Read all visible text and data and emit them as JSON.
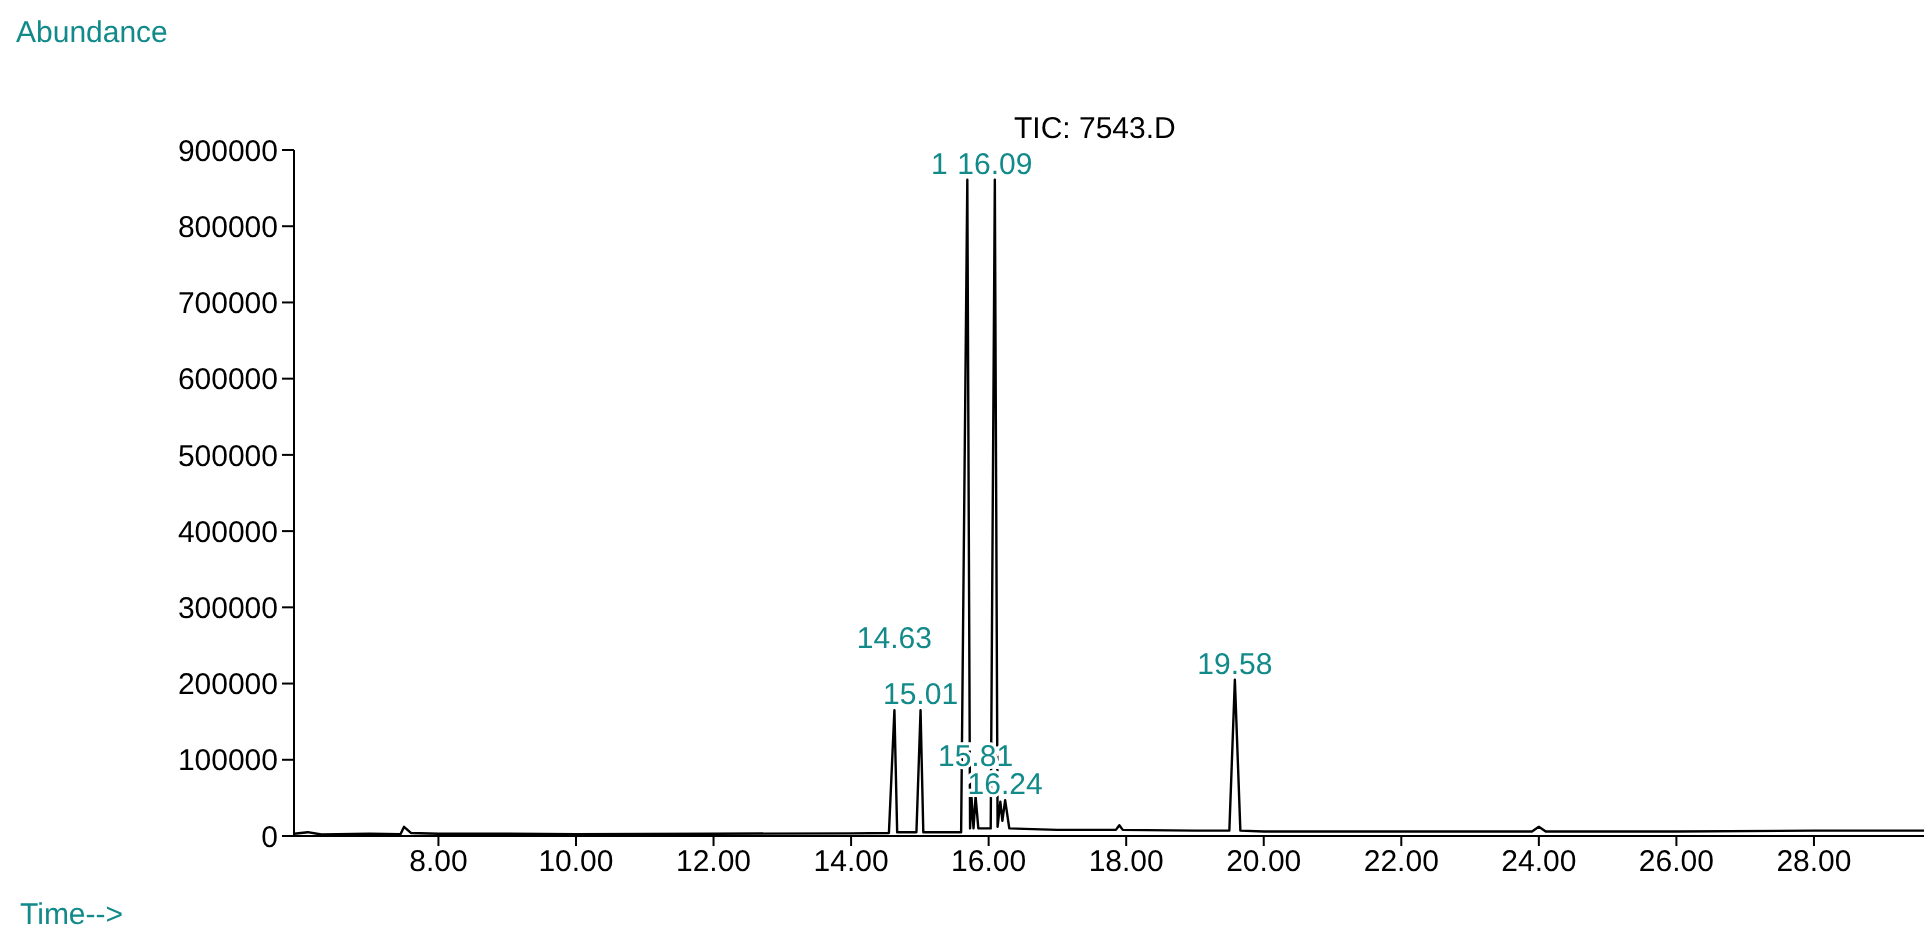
{
  "chart_data": {
    "type": "line",
    "title": "TIC: 7543.D",
    "xlabel": "Time-->",
    "ylabel": "Abundance",
    "xlim": [
      5.9,
      29.6
    ],
    "xticks": [
      {
        "value": 8,
        "label": "8.00"
      },
      {
        "value": 10,
        "label": "10.00"
      },
      {
        "value": 12,
        "label": "12.00"
      },
      {
        "value": 14,
        "label": "14.00"
      },
      {
        "value": 16,
        "label": "16.00"
      },
      {
        "value": 18,
        "label": "18.00"
      },
      {
        "value": 20,
        "label": "20.00"
      },
      {
        "value": 22,
        "label": "22.00"
      },
      {
        "value": 24,
        "label": "24.00"
      },
      {
        "value": 26,
        "label": "26.00"
      },
      {
        "value": 28,
        "label": "28.00"
      }
    ],
    "ylim": [
      0,
      900000
    ],
    "yticks": [
      0,
      100000,
      200000,
      300000,
      400000,
      500000,
      600000,
      700000,
      800000,
      900000
    ],
    "series": [
      {
        "color": "#000000",
        "x": [
          5.9,
          6.1,
          6.3,
          7.0,
          7.45,
          7.5,
          7.6,
          8.0,
          8.8,
          10,
          12,
          14,
          14.55,
          14.63,
          14.67,
          14.95,
          15.01,
          15.05,
          15.6,
          15.69,
          15.73,
          15.75,
          15.78,
          15.81,
          15.85,
          16.03,
          16.09,
          16.13,
          16.17,
          16.2,
          16.24,
          16.3,
          17.0,
          17.85,
          17.9,
          17.95,
          19.0,
          19.5,
          19.58,
          19.66,
          20,
          22,
          23.9,
          24.0,
          24.1,
          26,
          28,
          29.6
        ],
        "values": [
          3000,
          5000,
          2000,
          3000,
          2500,
          12000,
          4000,
          3000,
          3000,
          2500,
          3000,
          3500,
          4000,
          165000,
          5000,
          5000,
          165000,
          5000,
          5000,
          861000,
          10000,
          52000,
          10000,
          52000,
          10000,
          10000,
          861000,
          12000,
          45000,
          20000,
          47000,
          10000,
          8000,
          8000,
          14000,
          8000,
          7000,
          7000,
          205000,
          7000,
          6000,
          6000,
          6000,
          12000,
          6000,
          6000,
          7000,
          7000
        ]
      }
    ],
    "annotations": [
      {
        "text": "15.01",
        "x": 15.01,
        "y": 165000
      },
      {
        "text": "14.63",
        "x": 14.63,
        "y": 165000
      },
      {
        "text": "16.09",
        "x": 16.09,
        "y": 861000
      },
      {
        "text": "1",
        "x": 15.69,
        "y": 861000
      },
      {
        "text": "16.24",
        "x": 16.24,
        "y": 47000
      },
      {
        "text": "15.81",
        "x": 15.81,
        "y": 52000
      },
      {
        "text": "19.58",
        "x": 19.58,
        "y": 205000
      }
    ]
  }
}
